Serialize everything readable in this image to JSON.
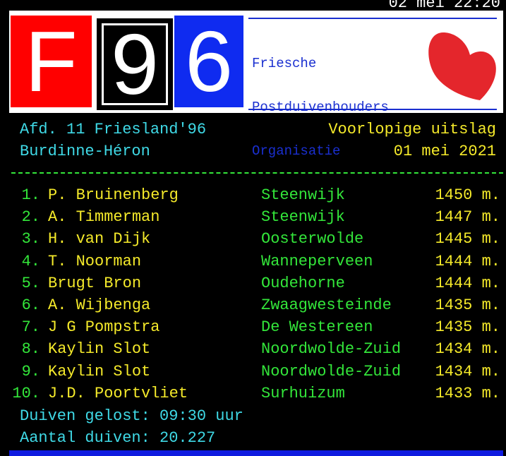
{
  "clock": "02 mei 22:20",
  "logo": {
    "letters": [
      "F",
      "9",
      "6"
    ],
    "lines": [
      "Friesche",
      "Postduivenhouders",
      "Organisatie"
    ]
  },
  "header": {
    "department": "Afd. 11 Friesland'96",
    "status": "Voorlopige uitslag",
    "release_site": "Burdinne-Héron",
    "date": "01 mei 2021"
  },
  "rows": [
    [
      "1.",
      "P. Bruinenberg",
      "Steenwijk",
      "1450 m."
    ],
    [
      "2.",
      "A. Timmerman",
      "Steenwijk",
      "1447 m."
    ],
    [
      "3.",
      "H. van Dijk",
      "Oosterwolde",
      "1445 m."
    ],
    [
      "4.",
      "T. Noorman",
      "Wanneperveen",
      "1444 m."
    ],
    [
      "5.",
      "Brugt Bron",
      "Oudehorne",
      "1444 m."
    ],
    [
      "6.",
      "A. Wijbenga",
      "Zwaagwesteinde",
      "1435 m."
    ],
    [
      "7.",
      "J G Pompstra",
      "De Westereen",
      "1435 m."
    ],
    [
      "8.",
      "Kaylin Slot",
      "Noordwolde-Zuid",
      "1434 m."
    ],
    [
      "9.",
      "Kaylin Slot",
      "Noordwolde-Zuid",
      "1434 m."
    ],
    [
      "10.",
      "J.D. Poortvliet",
      "Surhuizum",
      "1433 m."
    ]
  ],
  "footer": {
    "released": "Duiven gelost: 09:30 uur",
    "count": "Aantal duiven: 20.227"
  }
}
